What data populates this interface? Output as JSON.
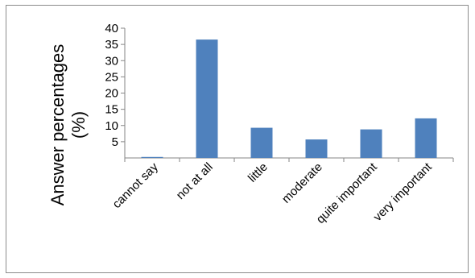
{
  "chart_data": {
    "type": "bar",
    "categories": [
      "cannot say",
      "not at all",
      "little",
      "moderate",
      "quite important",
      "very important"
    ],
    "values": [
      0.3,
      36.5,
      9.3,
      5.7,
      8.8,
      12.2
    ],
    "ylabel_line1": "Answer percentages",
    "ylabel_line2": "(%)",
    "ylim": [
      0,
      40
    ],
    "yticks": [
      5,
      10,
      15,
      20,
      25,
      30,
      35,
      40
    ],
    "bar_color": "#4f81bd",
    "grid": false,
    "legend": "none"
  }
}
